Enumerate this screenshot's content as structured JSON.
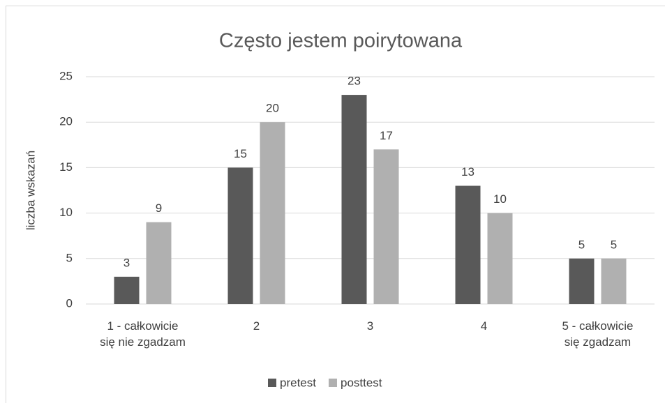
{
  "chart_data": {
    "type": "bar",
    "title": "Często jestem poirytowana",
    "y_label": "liczba wskazań",
    "categories": [
      "1 - całkowicie się nie zgadzam",
      "2",
      "3",
      "4",
      "5 - całkowicie się zgadzam"
    ],
    "series": [
      {
        "name": "pretest",
        "color": "#595959",
        "values": [
          3,
          15,
          23,
          13,
          5
        ]
      },
      {
        "name": "posttest",
        "color": "#b0b0b0",
        "values": [
          9,
          20,
          17,
          10,
          5
        ]
      }
    ],
    "ylim": [
      0,
      25
    ],
    "yticks": [
      0,
      5,
      10,
      15,
      20,
      25
    ],
    "grid": true,
    "legend": "bottom"
  }
}
